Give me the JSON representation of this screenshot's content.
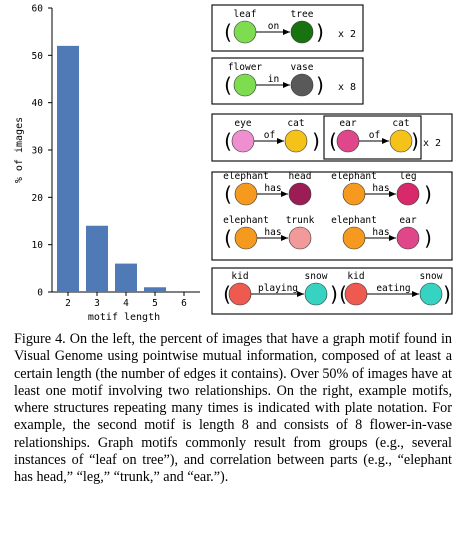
{
  "chart_data": {
    "type": "bar",
    "categories": [
      "2",
      "3",
      "4",
      "5",
      "6"
    ],
    "values": [
      52,
      14,
      6,
      1,
      0
    ],
    "xlabel": "motif length",
    "ylabel": "% of images",
    "ylim": [
      0,
      60
    ],
    "yticks": [
      "0",
      "10",
      "20",
      "30",
      "40",
      "50",
      "60"
    ],
    "bar_color": "#4f7ab5",
    "grid": false
  },
  "motifs": {
    "m1": {
      "left": "leaf",
      "right": "tree",
      "edge": "on",
      "plate": "x 2",
      "left_color": "#7ddc4f",
      "right_color": "#17720f"
    },
    "m2": {
      "left": "flower",
      "right": "vase",
      "edge": "in",
      "plate": "x 8",
      "left_color": "#7ddc4f",
      "right_color": "#595959"
    },
    "m3": {
      "a": {
        "left": "eye",
        "right": "cat",
        "edge": "of",
        "left_color": "#f08fd0",
        "right_color": "#f5c21a"
      },
      "b": {
        "left": "ear",
        "right": "cat",
        "edge": "of",
        "left_color": "#e0468a",
        "right_color": "#f5c21a"
      },
      "plate": "x 2"
    },
    "m4": {
      "r1a": {
        "left": "elephant",
        "right": "head",
        "edge": "has",
        "left_color": "#f59a1e",
        "right_color": "#9c1d55"
      },
      "r1b": {
        "left": "elephant",
        "right": "leg",
        "edge": "has",
        "left_color": "#f59a1e",
        "right_color": "#d82a6b"
      },
      "r2a": {
        "left": "elephant",
        "right": "trunk",
        "edge": "has",
        "left_color": "#f59a1e",
        "right_color": "#f29a9a"
      },
      "r2b": {
        "left": "elephant",
        "right": "ear",
        "edge": "has",
        "left_color": "#f59a1e",
        "right_color": "#e0468a"
      }
    },
    "m5": {
      "a": {
        "left": "kid",
        "right": "snow",
        "edge": "playing",
        "left_color": "#ee5a4f",
        "right_color": "#36d3c3"
      },
      "b": {
        "left": "kid",
        "right": "snow",
        "edge": "eating",
        "left_color": "#ee5a4f",
        "right_color": "#36d3c3"
      }
    }
  },
  "caption": {
    "label": "Figure 4.",
    "text": "On the left, the percent of images that have a graph motif found in Visual Genome using pointwise mutual information, composed of at least a certain length (the number of edges it contains). Over 50% of images have at least one motif involving two relationships. On the right, example motifs, where structures repeating many times is indicated with plate notation. For example, the second motif is length 8 and consists of 8 flower-in-vase relationships. Graph motifs commonly result from groups (e.g., several instances of “leaf on tree”), and correlation between parts (e.g., “elephant has head,” “leg,” “trunk,” and “ear.”)."
  }
}
